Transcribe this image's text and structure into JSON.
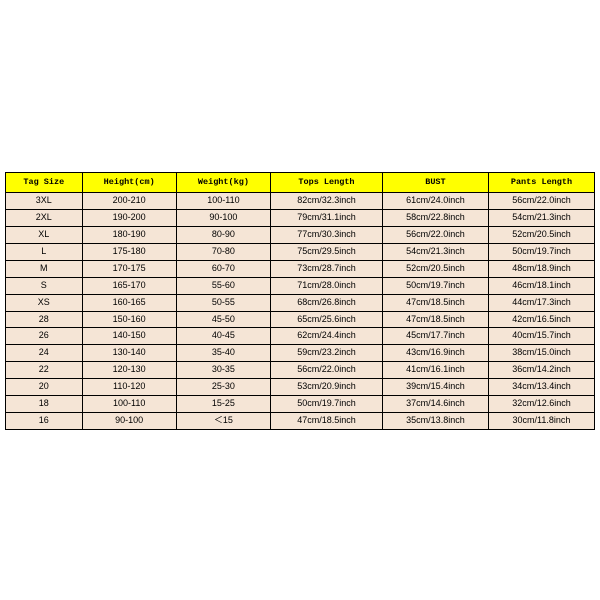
{
  "table": {
    "type": "table",
    "background_color": "#ffffff",
    "header_bg": "#ffff00",
    "row_bg": "#f5e5d6",
    "border_color": "#000000",
    "header_font": "Courier New",
    "body_font": "Arial",
    "header_fontsize_pt": 8.5,
    "body_fontsize_pt": 9,
    "columns": [
      {
        "key": "tag_size",
        "label": "Tag Size",
        "width_pct": 13
      },
      {
        "key": "height",
        "label": "Height(cm)",
        "width_pct": 16
      },
      {
        "key": "weight",
        "label": "Weight(kg)",
        "width_pct": 16
      },
      {
        "key": "tops_length",
        "label": "Tops Length",
        "width_pct": 19
      },
      {
        "key": "bust",
        "label": "BUST",
        "width_pct": 18
      },
      {
        "key": "pants_length",
        "label": "Pants Length",
        "width_pct": 18
      }
    ],
    "rows": [
      [
        "3XL",
        "200-210",
        "100-110",
        "82cm/32.3inch",
        "61cm/24.0inch",
        "56cm/22.0inch"
      ],
      [
        "2XL",
        "190-200",
        "90-100",
        "79cm/31.1inch",
        "58cm/22.8inch",
        "54cm/21.3inch"
      ],
      [
        "XL",
        "180-190",
        "80-90",
        "77cm/30.3inch",
        "56cm/22.0inch",
        "52cm/20.5inch"
      ],
      [
        "L",
        "175-180",
        "70-80",
        "75cm/29.5inch",
        "54cm/21.3inch",
        "50cm/19.7inch"
      ],
      [
        "M",
        "170-175",
        "60-70",
        "73cm/28.7inch",
        "52cm/20.5inch",
        "48cm/18.9inch"
      ],
      [
        "S",
        "165-170",
        "55-60",
        "71cm/28.0inch",
        "50cm/19.7inch",
        "46cm/18.1inch"
      ],
      [
        "XS",
        "160-165",
        "50-55",
        "68cm/26.8inch",
        "47cm/18.5inch",
        "44cm/17.3inch"
      ],
      [
        "28",
        "150-160",
        "45-50",
        "65cm/25.6inch",
        "47cm/18.5inch",
        "42cm/16.5inch"
      ],
      [
        "26",
        "140-150",
        "40-45",
        "62cm/24.4inch",
        "45cm/17.7inch",
        "40cm/15.7inch"
      ],
      [
        "24",
        "130-140",
        "35-40",
        "59cm/23.2inch",
        "43cm/16.9inch",
        "38cm/15.0inch"
      ],
      [
        "22",
        "120-130",
        "30-35",
        "56cm/22.0inch",
        "41cm/16.1inch",
        "36cm/14.2inch"
      ],
      [
        "20",
        "110-120",
        "25-30",
        "53cm/20.9inch",
        "39cm/15.4inch",
        "34cm/13.4inch"
      ],
      [
        "18",
        "100-110",
        "15-25",
        "50cm/19.7inch",
        "37cm/14.6inch",
        "32cm/12.6inch"
      ],
      [
        "16",
        "90-100",
        "＜15",
        "47cm/18.5inch",
        "35cm/13.8inch",
        "30cm/11.8inch"
      ]
    ]
  }
}
